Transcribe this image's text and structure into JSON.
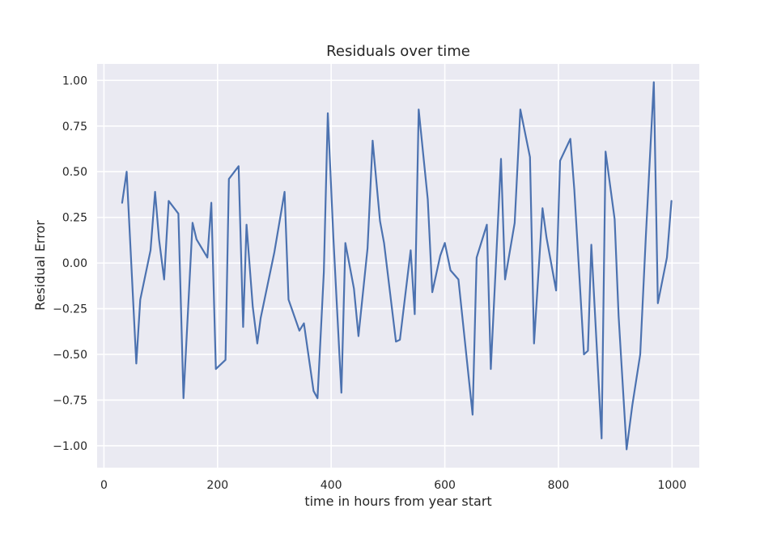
{
  "chart_data": {
    "type": "line",
    "title": "Residuals over time",
    "xlabel": "time in hours from year start",
    "ylabel": "Residual Error",
    "xlim": [
      -12,
      1048
    ],
    "ylim": [
      -1.12,
      1.09
    ],
    "xticks": [
      0,
      200,
      400,
      600,
      800,
      1000
    ],
    "yticks": [
      -1.0,
      -0.75,
      -0.5,
      -0.25,
      0.0,
      0.25,
      0.5,
      0.75,
      1.0
    ],
    "xtick_labels": [
      "0",
      "200",
      "400",
      "600",
      "800",
      "1000"
    ],
    "ytick_labels": [
      "−1.00",
      "−0.75",
      "−0.50",
      "−0.25",
      "0.00",
      "0.25",
      "0.50",
      "0.75",
      "1.00"
    ],
    "grid": true,
    "colors": {
      "background": "#eaeaf2",
      "grid": "#ffffff",
      "series": "#4c72b0"
    },
    "series": [
      {
        "x": [
          32,
          40,
          57,
          64,
          82,
          90,
          97,
          106,
          114,
          131,
          140,
          156,
          163,
          182,
          189,
          197,
          214,
          220,
          237,
          245,
          251,
          262,
          270,
          276,
          300,
          318,
          325,
          344,
          352,
          369,
          376,
          387,
          394,
          404,
          418,
          425,
          440,
          448,
          464,
          473,
          486,
          493,
          514,
          521,
          540,
          547,
          554,
          570,
          578,
          592,
          600,
          610,
          624,
          649,
          656,
          674,
          681,
          699,
          706,
          723,
          733,
          750,
          757,
          772,
          779,
          796,
          803,
          821,
          828,
          845,
          852,
          858,
          876,
          883,
          899,
          906,
          920,
          930,
          944,
          954,
          968,
          975,
          991,
          999
        ],
        "y": [
          0.33,
          0.5,
          -0.55,
          -0.2,
          0.07,
          0.39,
          0.13,
          -0.09,
          0.34,
          0.27,
          -0.74,
          0.22,
          0.13,
          0.03,
          0.33,
          -0.58,
          -0.53,
          0.46,
          0.53,
          -0.35,
          0.21,
          -0.24,
          -0.44,
          -0.3,
          0.06,
          0.39,
          -0.2,
          -0.37,
          -0.33,
          -0.7,
          -0.74,
          -0.05,
          0.82,
          0.13,
          -0.71,
          0.11,
          -0.14,
          -0.4,
          0.08,
          0.67,
          0.23,
          0.11,
          -0.43,
          -0.42,
          0.07,
          -0.28,
          0.84,
          0.35,
          -0.16,
          0.04,
          0.11,
          -0.04,
          -0.09,
          -0.83,
          0.03,
          0.21,
          -0.58,
          0.57,
          -0.09,
          0.22,
          0.84,
          0.58,
          -0.44,
          0.3,
          0.14,
          -0.15,
          0.56,
          0.68,
          0.4,
          -0.5,
          -0.48,
          0.1,
          -0.96,
          0.61,
          0.24,
          -0.29,
          -1.02,
          -0.78,
          -0.5,
          0.15,
          0.99,
          -0.22,
          0.03,
          0.34
        ]
      }
    ]
  }
}
